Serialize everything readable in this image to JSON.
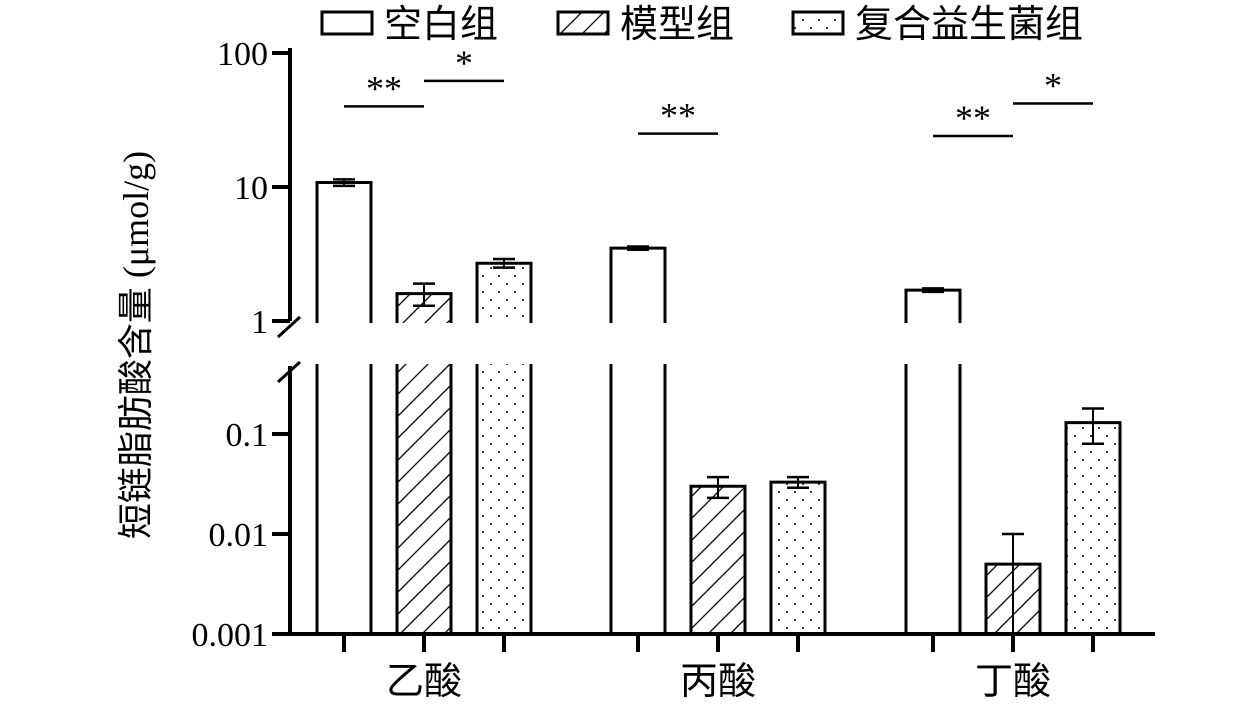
{
  "chart_data": {
    "type": "bar",
    "title": "",
    "ylabel": "短链脂肪酸含量 (μmol/g)",
    "xlabel": "",
    "yscale": "log-broken",
    "ylim": [
      0.001,
      100
    ],
    "grid": false,
    "legend_position": "top",
    "categories": [
      "乙酸",
      "丙酸",
      "丁酸"
    ],
    "yticks": [
      {
        "value": 100,
        "label": "100"
      },
      {
        "value": 10,
        "label": "10"
      },
      {
        "value": 1,
        "label": "1"
      },
      {
        "value": 0.1,
        "label": "0.1"
      },
      {
        "value": 0.01,
        "label": "0.01"
      },
      {
        "value": 0.001,
        "label": "0.001"
      }
    ],
    "series": [
      {
        "name": "空白组",
        "pattern": "open",
        "values": [
          10.8,
          3.5,
          1.7
        ],
        "errors": [
          0.6,
          0.1,
          0.05
        ]
      },
      {
        "name": "模型组",
        "pattern": "hatch",
        "values": [
          1.6,
          0.03,
          0.005
        ],
        "errors": [
          0.3,
          0.007,
          0.005
        ]
      },
      {
        "name": "复合益生菌组",
        "pattern": "dots",
        "values": [
          2.7,
          0.033,
          0.13
        ],
        "errors": [
          0.2,
          0.004,
          0.05
        ]
      }
    ],
    "significance": [
      {
        "category": 0,
        "from_series": 0,
        "to_series": 1,
        "label": "**",
        "y": 40
      },
      {
        "category": 0,
        "from_series": 1,
        "to_series": 2,
        "label": "*",
        "y": 62
      },
      {
        "category": 1,
        "from_series": 0,
        "to_series": 1,
        "label": "**",
        "y": 25
      },
      {
        "category": 2,
        "from_series": 0,
        "to_series": 1,
        "label": "**",
        "y": 24
      },
      {
        "category": 2,
        "from_series": 1,
        "to_series": 2,
        "label": "*",
        "y": 42
      }
    ]
  }
}
